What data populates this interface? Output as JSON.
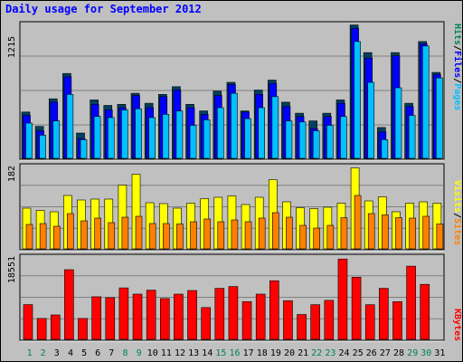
{
  "title": "Daily usage for September 2012",
  "colors": {
    "hits": "#00c0ff",
    "files": "#0000ff",
    "pages": "#00c0ff",
    "visits": "#ffff00",
    "sites": "#ff8000",
    "kbytes": "#ff0000",
    "weekend_label": "#00805c",
    "weekday_label": "#000000"
  },
  "chart_data": [
    {
      "type": "bar",
      "panel": "hits-files-pages",
      "ymax_label": "1215",
      "ymax": 1215,
      "legend": [
        {
          "label": "Pages",
          "color": "#00c0ff"
        },
        {
          "label": "/",
          "color": "#000000"
        },
        {
          "label": "Files",
          "color": "#0000ff"
        },
        {
          "label": "/",
          "color": "#000000"
        },
        {
          "label": "Hits",
          "color": "#00805c"
        }
      ],
      "categories": [
        "1",
        "2",
        "3",
        "4",
        "5",
        "6",
        "7",
        "8",
        "9",
        "10",
        "11",
        "12",
        "13",
        "14",
        "15",
        "16",
        "17",
        "18",
        "19",
        "20",
        "21",
        "22",
        "23",
        "24",
        "25",
        "26",
        "27",
        "28",
        "29",
        "30",
        "31"
      ],
      "series": [
        {
          "name": "Hits",
          "values": [
            420,
            290,
            540,
            770,
            230,
            530,
            480,
            490,
            590,
            500,
            580,
            650,
            490,
            430,
            610,
            690,
            430,
            620,
            710,
            510,
            410,
            340,
            410,
            530,
            1210,
            960,
            280,
            960,
            500,
            1060,
            780
          ]
        },
        {
          "name": "Files",
          "values": [
            390,
            250,
            510,
            740,
            180,
            490,
            440,
            460,
            570,
            460,
            560,
            620,
            460,
            400,
            570,
            670,
            420,
            580,
            680,
            470,
            380,
            270,
            380,
            500,
            1180,
            910,
            240,
            930,
            470,
            1040,
            760
          ]
        },
        {
          "name": "Pages",
          "values": [
            320,
            210,
            340,
            580,
            170,
            380,
            370,
            440,
            450,
            370,
            400,
            430,
            300,
            350,
            460,
            590,
            360,
            460,
            560,
            340,
            330,
            250,
            300,
            380,
            1060,
            690,
            170,
            640,
            390,
            1020,
            730
          ]
        }
      ]
    },
    {
      "type": "bar",
      "panel": "visits-sites",
      "ymax_label": "182",
      "ymax": 182,
      "legend": [
        {
          "label": "Sites",
          "color": "#ff8000"
        },
        {
          "label": "/",
          "color": "#000000"
        },
        {
          "label": "Visits",
          "color": "#ffff00"
        }
      ],
      "categories": [
        "1",
        "2",
        "3",
        "4",
        "5",
        "6",
        "7",
        "8",
        "9",
        "10",
        "11",
        "12",
        "13",
        "14",
        "15",
        "16",
        "17",
        "18",
        "19",
        "20",
        "21",
        "22",
        "23",
        "24",
        "25",
        "26",
        "27",
        "28",
        "29",
        "30",
        "31"
      ],
      "series": [
        {
          "name": "Visits",
          "values": [
            90,
            85,
            82,
            118,
            108,
            110,
            110,
            141,
            165,
            102,
            100,
            90,
            101,
            111,
            114,
            117,
            98,
            114,
            153,
            104,
            91,
            89,
            92,
            101,
            179,
            106,
            115,
            82,
            101,
            104,
            101
          ]
        },
        {
          "name": "Sites",
          "values": [
            54,
            56,
            50,
            78,
            62,
            68,
            58,
            70,
            72,
            56,
            56,
            55,
            60,
            66,
            60,
            64,
            60,
            68,
            80,
            70,
            52,
            46,
            52,
            69,
            118,
            78,
            75,
            69,
            68,
            72,
            55
          ]
        }
      ]
    },
    {
      "type": "bar",
      "panel": "kbytes",
      "ymax_label": "18551",
      "ymax": 18551,
      "legend": [
        {
          "label": "KBytes",
          "color": "#ff0000"
        }
      ],
      "categories": [
        "1",
        "2",
        "3",
        "4",
        "5",
        "6",
        "7",
        "8",
        "9",
        "10",
        "11",
        "12",
        "13",
        "14",
        "15",
        "16",
        "17",
        "18",
        "19",
        "20",
        "21",
        "22",
        "23",
        "24",
        "25",
        "26",
        "27",
        "28",
        "29",
        "30",
        "31"
      ],
      "series": [
        {
          "name": "KBytes",
          "values": [
            7830,
            4700,
            5500,
            15700,
            4700,
            9600,
            9400,
            11600,
            10200,
            11100,
            9200,
            10200,
            11000,
            7180,
            11500,
            11900,
            8500,
            10200,
            13200,
            8700,
            5600,
            7800,
            8790,
            18100,
            14000,
            7800,
            11500,
            8500,
            16500,
            12400,
            0
          ]
        }
      ]
    }
  ]
}
